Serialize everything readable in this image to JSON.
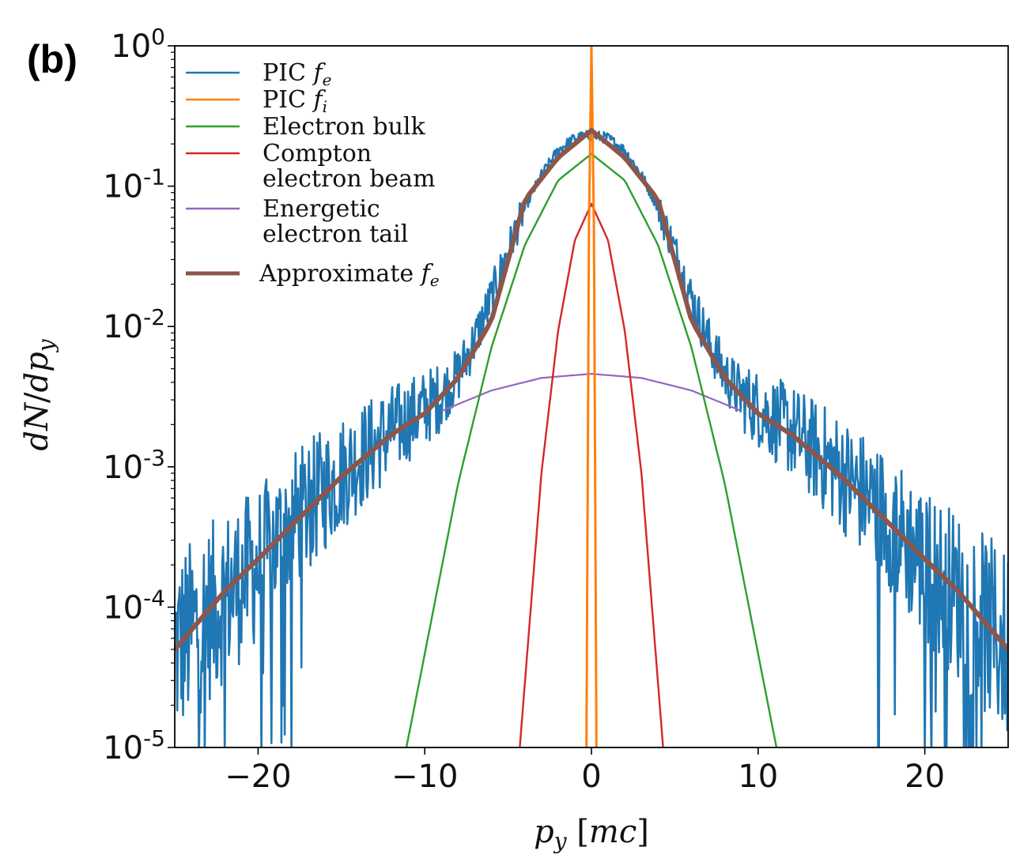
{
  "panel_label": "(b)",
  "colors": {
    "pic_fe": "#1f77b4",
    "pic_fi": "#ff7f0e",
    "bulk": "#2ca02c",
    "compton": "#d62728",
    "tail": "#9467bd",
    "approx": "#8c564b"
  },
  "chart_data": {
    "type": "line",
    "xlabel": "p_y [mc]",
    "ylabel": "dN/dp_y",
    "xlim": [
      -25,
      25
    ],
    "ylim": [
      1e-05,
      1
    ],
    "yscale": "log",
    "legend_position": "top-left",
    "x_ticks": [
      {
        "value": -20,
        "label": "−20"
      },
      {
        "value": -10,
        "label": "−10"
      },
      {
        "value": 0,
        "label": "0"
      },
      {
        "value": 10,
        "label": "10"
      },
      {
        "value": 20,
        "label": "20"
      }
    ],
    "y_ticks": [
      {
        "value": 1,
        "base": "10",
        "exp": "0"
      },
      {
        "value": 0.1,
        "base": "10",
        "exp": "-1"
      },
      {
        "value": 0.01,
        "base": "10",
        "exp": "-2"
      },
      {
        "value": 0.001,
        "base": "10",
        "exp": "-3"
      },
      {
        "value": 0.0001,
        "base": "10",
        "exp": "-4"
      },
      {
        "value": 1e-05,
        "base": "10",
        "exp": "-5"
      }
    ],
    "series": [
      {
        "key": "pic_fe",
        "legend": [
          "PIC f_e"
        ],
        "model": "noisy",
        "x": [
          -25,
          -22,
          -20,
          -18,
          -15,
          -12,
          -10,
          -9,
          -8,
          -7,
          -6,
          -5,
          -4,
          -3,
          -2,
          -1,
          0,
          1,
          2,
          3,
          4,
          5,
          6,
          7,
          8,
          9,
          10,
          12,
          15,
          18,
          20,
          22,
          25
        ],
        "y": [
          5e-05,
          0.00012,
          0.0002,
          0.0004,
          0.0009,
          0.0018,
          0.0026,
          0.0032,
          0.0045,
          0.008,
          0.016,
          0.035,
          0.07,
          0.12,
          0.18,
          0.22,
          0.23,
          0.22,
          0.18,
          0.12,
          0.07,
          0.035,
          0.016,
          0.008,
          0.0045,
          0.0032,
          0.0026,
          0.0018,
          0.0009,
          0.0004,
          0.0002,
          0.00012,
          5e-05
        ]
      },
      {
        "key": "pic_fi",
        "legend": [
          "PIC f_i"
        ],
        "model": "spike",
        "x": [
          -0.3,
          -0.15,
          0,
          0.15,
          0.3
        ],
        "y": [
          1e-05,
          0.05,
          1.0,
          0.05,
          1e-05
        ]
      },
      {
        "key": "bulk",
        "legend": [
          "Electron bulk"
        ],
        "model": "gaussian",
        "x": [
          -11.1,
          -8,
          -6,
          -4,
          -2,
          0,
          2,
          4,
          6,
          8,
          11.1
        ],
        "y": [
          1e-05,
          0.00076,
          0.0071,
          0.038,
          0.11,
          0.17,
          0.11,
          0.038,
          0.0071,
          0.00076,
          1e-05
        ]
      },
      {
        "key": "compton",
        "legend": [
          "Compton",
          "electron beam"
        ],
        "model": "gaussian",
        "x": [
          -4.3,
          -3,
          -2,
          -1,
          0,
          1,
          2,
          3,
          4.3
        ],
        "y": [
          1e-05,
          0.0009,
          0.0093,
          0.041,
          0.075,
          0.041,
          0.0093,
          0.0009,
          1e-05
        ]
      },
      {
        "key": "tail",
        "legend": [
          "Energetic",
          "electron tail"
        ],
        "model": "gaussian",
        "x": [
          -9,
          -6,
          -3,
          0,
          3,
          6,
          9
        ],
        "y": [
          0.0025,
          0.0035,
          0.0043,
          0.0046,
          0.0043,
          0.0035,
          0.0025
        ]
      },
      {
        "key": "approx",
        "legend": [
          "Approximate f_e"
        ],
        "model": "sum",
        "x": [
          -25,
          -22,
          -20,
          -18,
          -15,
          -12,
          -10,
          -8,
          -6,
          -4,
          -2,
          0,
          2,
          4,
          6,
          8,
          10,
          12,
          15,
          18,
          20,
          22,
          25
        ],
        "y": [
          5e-05,
          0.00013,
          0.00022,
          0.00038,
          0.00085,
          0.0017,
          0.0024,
          0.0043,
          0.011,
          0.08,
          0.16,
          0.25,
          0.16,
          0.08,
          0.011,
          0.0043,
          0.0024,
          0.0017,
          0.00085,
          0.00038,
          0.00022,
          0.00013,
          5e-05
        ]
      }
    ]
  }
}
